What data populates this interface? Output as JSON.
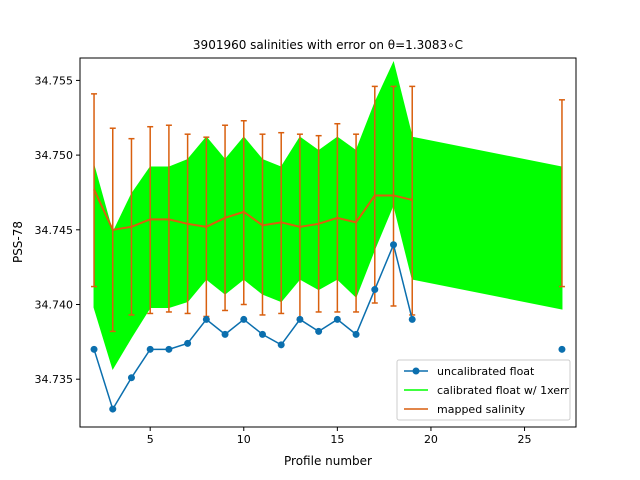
{
  "chart_data": {
    "type": "line",
    "title": "3901960 salinities with error on θ=1.3083∘C",
    "xlabel": "Profile number",
    "ylabel": "PSS-78",
    "xlim": [
      1.25,
      27.75
    ],
    "ylim": [
      34.7318,
      34.7565
    ],
    "xticks": [
      5,
      10,
      15,
      20,
      25
    ],
    "xtick_labels": [
      "5",
      "10",
      "15",
      "20",
      "25"
    ],
    "yticks": [
      34.735,
      34.74,
      34.745,
      34.75,
      34.755
    ],
    "ytick_labels": [
      "34.735",
      "34.740",
      "34.745",
      "34.750",
      "34.755"
    ],
    "grid": false,
    "legend_position": "bottom-right",
    "series": [
      {
        "name": "uncalibrated float",
        "kind": "line-marker",
        "color": "#0b6fae",
        "points": [
          [
            2,
            34.737
          ],
          [
            3,
            34.733
          ],
          [
            4,
            34.7351
          ],
          [
            5,
            34.737
          ],
          [
            6,
            34.737
          ],
          [
            7,
            34.7374
          ],
          [
            8,
            34.739
          ],
          [
            9,
            34.738
          ],
          [
            10,
            34.739
          ],
          [
            11,
            34.738
          ],
          [
            12,
            34.7373
          ],
          [
            13,
            34.739
          ],
          [
            14,
            34.7382
          ],
          [
            15,
            34.739
          ],
          [
            16,
            34.738
          ],
          [
            17,
            34.741
          ],
          [
            18,
            34.744
          ],
          [
            19,
            34.739
          ]
        ],
        "isolated_points": [
          [
            27,
            34.737
          ]
        ]
      },
      {
        "name": "calibrated float w/ 1xerr",
        "kind": "band",
        "color": "#00ff00",
        "x": [
          2,
          3,
          4,
          5,
          6,
          7,
          8,
          9,
          10,
          11,
          12,
          13,
          14,
          15,
          16,
          17,
          18,
          19,
          27
        ],
        "upper": [
          34.7493,
          34.7448,
          34.7474,
          34.7492,
          34.7492,
          34.7497,
          34.7512,
          34.7497,
          34.7512,
          34.7497,
          34.7492,
          34.7512,
          34.7503,
          34.7512,
          34.7503,
          34.7535,
          34.7562,
          34.7512,
          34.7492
        ],
        "lower": [
          34.7398,
          34.7357,
          34.7378,
          34.7398,
          34.7398,
          34.7402,
          34.7417,
          34.7407,
          34.7417,
          34.7407,
          34.7402,
          34.7417,
          34.741,
          34.7417,
          34.7405,
          34.7437,
          34.7467,
          34.7417,
          34.7397
        ]
      },
      {
        "name": "mapped salinity",
        "kind": "line-errorbar",
        "color": "#d95f0e",
        "x": [
          2,
          3,
          4,
          5,
          6,
          7,
          8,
          9,
          10,
          11,
          12,
          13,
          14,
          15,
          16,
          17,
          18,
          19,
          27
        ],
        "y": [
          34.7477,
          34.745,
          34.7452,
          34.7457,
          34.7457,
          34.7454,
          34.7452,
          34.7458,
          34.7462,
          34.7453,
          34.7455,
          34.7452,
          34.7454,
          34.7458,
          34.7455,
          34.7473,
          34.7473,
          34.747,
          34.7475
        ],
        "err_upper": [
          34.7541,
          34.7518,
          34.7511,
          34.7519,
          34.752,
          34.7514,
          34.7512,
          34.752,
          34.7523,
          34.7514,
          34.7515,
          34.7514,
          34.7513,
          34.7521,
          34.7514,
          34.7546,
          34.7546,
          34.7546,
          34.7537
        ],
        "err_lower": [
          34.7412,
          34.7382,
          34.7393,
          34.7394,
          34.7395,
          34.7394,
          34.7392,
          34.7396,
          34.74,
          34.7393,
          34.7394,
          34.7391,
          34.7395,
          34.7395,
          34.7395,
          34.7401,
          34.7399,
          34.7393,
          34.7412
        ],
        "line_x_max": 19
      }
    ]
  }
}
